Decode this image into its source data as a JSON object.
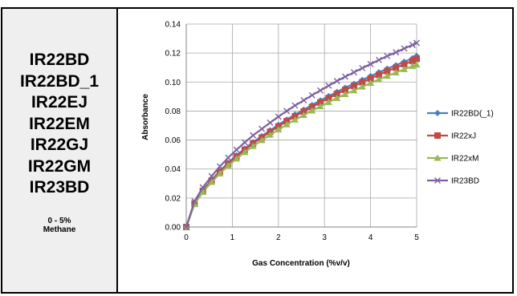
{
  "panel": {
    "models": [
      "IR22BD",
      "IR22BD_1",
      "IR22EJ",
      "IR22EM",
      "IR22GJ",
      "IR22GM",
      "IR23BD"
    ],
    "range_line1": "0 - 5%",
    "range_line2": "Methane"
  },
  "chart_data": {
    "type": "line",
    "title": "",
    "xlabel": "Gas Concentration (%v/v)",
    "ylabel": "Absorbance",
    "xlim": [
      0,
      5
    ],
    "ylim": [
      0,
      0.14
    ],
    "xticks": [
      "0",
      "1",
      "2",
      "3",
      "4",
      "5"
    ],
    "yticks": [
      "0.00",
      "0.02",
      "0.04",
      "0.06",
      "0.08",
      "0.10",
      "0.12",
      "0.14"
    ],
    "grid": true,
    "legend_position": "right",
    "x": [
      0,
      0.18,
      0.36,
      0.55,
      0.73,
      0.91,
      1.09,
      1.27,
      1.45,
      1.64,
      1.82,
      2.0,
      2.18,
      2.36,
      2.55,
      2.73,
      2.91,
      3.09,
      3.27,
      3.45,
      3.64,
      3.82,
      4.0,
      4.18,
      4.36,
      4.55,
      4.73,
      4.91,
      5.0
    ],
    "series": [
      {
        "name": "IR22BD(_1)",
        "color": "#4a7ebb",
        "marker": "diamond",
        "values": [
          0.0,
          0.0165,
          0.0253,
          0.0325,
          0.0387,
          0.0443,
          0.0494,
          0.0541,
          0.0585,
          0.0627,
          0.0667,
          0.0705,
          0.0741,
          0.0776,
          0.0809,
          0.0841,
          0.0873,
          0.0903,
          0.0932,
          0.0961,
          0.0988,
          0.1015,
          0.1041,
          0.1067,
          0.1092,
          0.1116,
          0.114,
          0.1164,
          0.118
        ]
      },
      {
        "name": "IR22xJ",
        "color": "#be4b48",
        "marker": "square",
        "values": [
          0.0,
          0.0162,
          0.0249,
          0.032,
          0.0381,
          0.0436,
          0.0486,
          0.0533,
          0.0576,
          0.0617,
          0.0657,
          0.0694,
          0.073,
          0.0764,
          0.0797,
          0.0828,
          0.0859,
          0.0889,
          0.0918,
          0.0946,
          0.0973,
          0.0999,
          0.1025,
          0.105,
          0.1075,
          0.1099,
          0.1123,
          0.1146,
          0.116
        ]
      },
      {
        "name": "IR22xM",
        "color": "#98b954",
        "marker": "triangle",
        "values": [
          0.0,
          0.0157,
          0.0241,
          0.031,
          0.0369,
          0.0423,
          0.0471,
          0.0516,
          0.0558,
          0.0598,
          0.0636,
          0.0672,
          0.0707,
          0.074,
          0.0772,
          0.0803,
          0.0832,
          0.0861,
          0.0889,
          0.0916,
          0.0942,
          0.0968,
          0.0993,
          0.1018,
          0.1042,
          0.1065,
          0.1088,
          0.111,
          0.112
        ]
      },
      {
        "name": "IR23BD",
        "color": "#7d60a0",
        "marker": "x",
        "values": [
          0.0,
          0.0178,
          0.0273,
          0.0351,
          0.0418,
          0.0478,
          0.0533,
          0.0584,
          0.0632,
          0.0677,
          0.072,
          0.0761,
          0.08,
          0.0838,
          0.0874,
          0.0909,
          0.0942,
          0.0975,
          0.1007,
          0.1037,
          0.1067,
          0.1096,
          0.1124,
          0.1152,
          0.1179,
          0.1205,
          0.1231,
          0.1256,
          0.127
        ]
      }
    ]
  }
}
